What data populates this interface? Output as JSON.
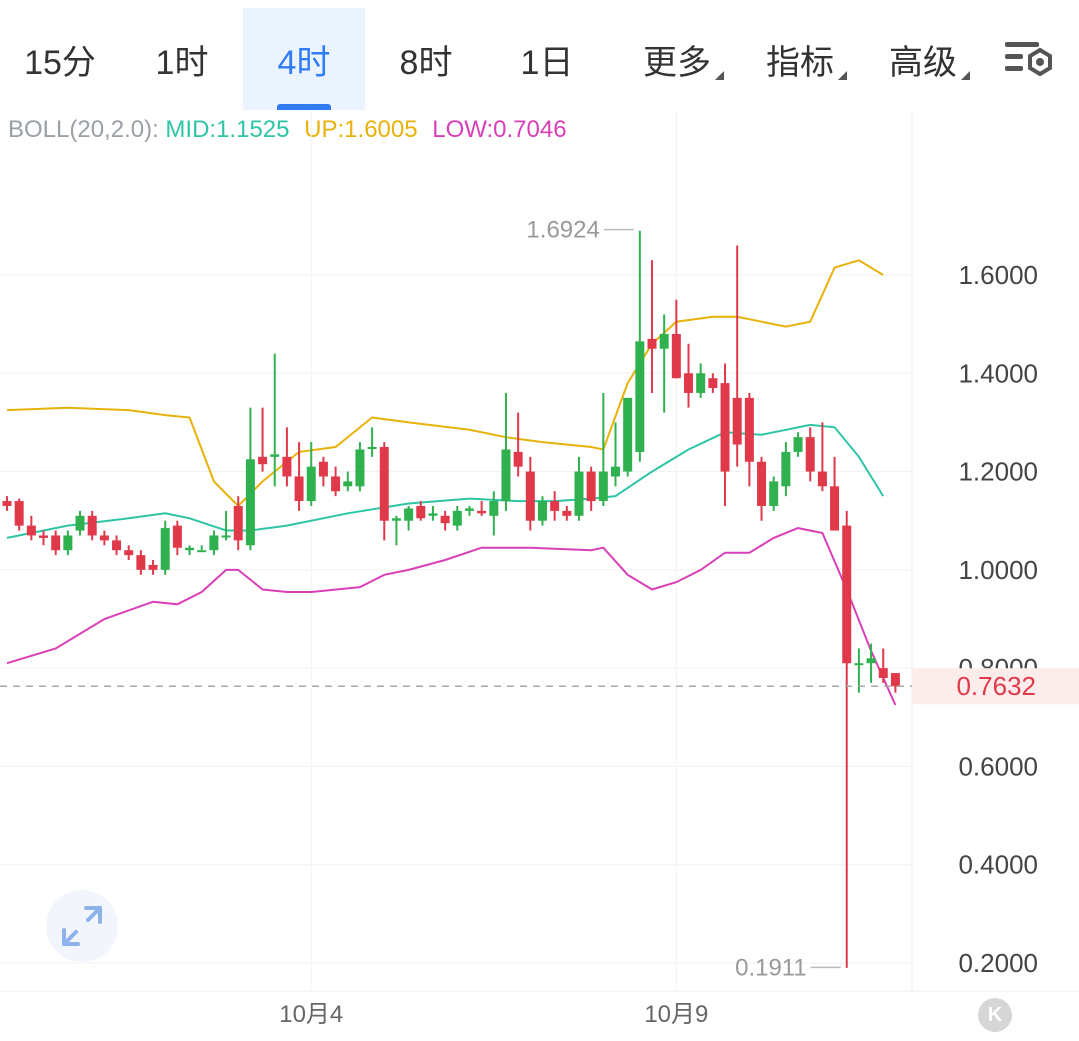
{
  "tabs": [
    {
      "label": "15分",
      "active": false
    },
    {
      "label": "1时",
      "active": false
    },
    {
      "label": "4时",
      "active": true
    },
    {
      "label": "8时",
      "active": false
    },
    {
      "label": "1日",
      "active": false
    },
    {
      "label": "更多",
      "active": false,
      "dropdown": true
    },
    {
      "label": "指标",
      "active": false,
      "dropdown": true
    },
    {
      "label": "高级",
      "active": false,
      "dropdown": true
    }
  ],
  "settings_icon": "chart-settings-icon",
  "indicator": {
    "name": "BOLL(20,2.0):",
    "mid_label": "MID:1.1525",
    "up_label": "UP:1.6005",
    "low_label": "LOW:0.7046"
  },
  "colors": {
    "up": "#2fb14f",
    "down": "#e0394a",
    "mid": "#2ec4a6",
    "upper": "#e8b20a",
    "lower": "#d93fb7",
    "accent": "#2f7cf6"
  },
  "chart_data": {
    "type": "candlestick",
    "y_ticks": [
      "1.6000",
      "1.4000",
      "1.2000",
      "1.0000",
      "0.8000",
      "0.6000",
      "0.4000",
      "0.2000"
    ],
    "y_tick_values": [
      1.6,
      1.4,
      1.2,
      1.0,
      0.8,
      0.6,
      0.4,
      0.2
    ],
    "ylim": [
      0.18,
      1.9
    ],
    "x_labels": [
      {
        "index": 25,
        "text": "10月4"
      },
      {
        "index": 55,
        "text": "10月9"
      }
    ],
    "high_marker": {
      "text": "1.6924",
      "value": 1.6924,
      "index": 52
    },
    "low_marker": {
      "text": "0.1911",
      "value": 0.1911,
      "index": 69
    },
    "last_price": {
      "text": "0.7632",
      "value": 0.7632
    },
    "candles": [
      [
        1.14,
        1.13,
        1.15,
        1.12
      ],
      [
        1.14,
        1.09,
        1.145,
        1.08
      ],
      [
        1.09,
        1.07,
        1.11,
        1.06
      ],
      [
        1.07,
        1.065,
        1.08,
        1.05
      ],
      [
        1.07,
        1.04,
        1.08,
        1.03
      ],
      [
        1.04,
        1.07,
        1.08,
        1.03
      ],
      [
        1.08,
        1.11,
        1.12,
        1.07
      ],
      [
        1.11,
        1.07,
        1.12,
        1.06
      ],
      [
        1.07,
        1.06,
        1.08,
        1.05
      ],
      [
        1.06,
        1.04,
        1.07,
        1.03
      ],
      [
        1.04,
        1.03,
        1.05,
        1.02
      ],
      [
        1.03,
        1.0,
        1.04,
        0.99
      ],
      [
        1.01,
        1.0,
        1.02,
        0.99
      ],
      [
        1.0,
        1.085,
        1.1,
        0.99
      ],
      [
        1.09,
        1.045,
        1.1,
        1.03
      ],
      [
        1.04,
        1.045,
        1.05,
        1.03
      ],
      [
        1.04,
        1.04,
        1.05,
        1.04
      ],
      [
        1.04,
        1.07,
        1.08,
        1.03
      ],
      [
        1.07,
        1.07,
        1.12,
        1.06
      ],
      [
        1.13,
        1.06,
        1.15,
        1.04
      ],
      [
        1.05,
        1.225,
        1.33,
        1.04
      ],
      [
        1.23,
        1.215,
        1.33,
        1.2
      ],
      [
        1.23,
        1.235,
        1.44,
        1.17
      ],
      [
        1.23,
        1.19,
        1.29,
        1.17
      ],
      [
        1.19,
        1.14,
        1.26,
        1.12
      ],
      [
        1.14,
        1.21,
        1.26,
        1.13
      ],
      [
        1.22,
        1.19,
        1.23,
        1.17
      ],
      [
        1.19,
        1.16,
        1.21,
        1.15
      ],
      [
        1.17,
        1.18,
        1.2,
        1.16
      ],
      [
        1.17,
        1.245,
        1.26,
        1.16
      ],
      [
        1.25,
        1.25,
        1.29,
        1.23
      ],
      [
        1.25,
        1.1,
        1.26,
        1.06
      ],
      [
        1.1,
        1.105,
        1.11,
        1.05
      ],
      [
        1.1,
        1.125,
        1.13,
        1.08
      ],
      [
        1.13,
        1.105,
        1.14,
        1.1
      ],
      [
        1.11,
        1.115,
        1.13,
        1.1
      ],
      [
        1.11,
        1.095,
        1.12,
        1.08
      ],
      [
        1.09,
        1.12,
        1.13,
        1.08
      ],
      [
        1.12,
        1.125,
        1.13,
        1.11
      ],
      [
        1.12,
        1.115,
        1.14,
        1.11
      ],
      [
        1.11,
        1.14,
        1.16,
        1.07
      ],
      [
        1.14,
        1.245,
        1.36,
        1.12
      ],
      [
        1.24,
        1.21,
        1.32,
        1.19
      ],
      [
        1.2,
        1.1,
        1.23,
        1.08
      ],
      [
        1.1,
        1.14,
        1.15,
        1.09
      ],
      [
        1.14,
        1.12,
        1.16,
        1.1
      ],
      [
        1.12,
        1.11,
        1.13,
        1.1
      ],
      [
        1.11,
        1.2,
        1.23,
        1.1
      ],
      [
        1.2,
        1.14,
        1.21,
        1.12
      ],
      [
        1.14,
        1.2,
        1.36,
        1.13
      ],
      [
        1.19,
        1.21,
        1.3,
        1.17
      ],
      [
        1.2,
        1.35,
        1.34,
        1.19
      ],
      [
        1.24,
        1.465,
        1.69,
        1.22
      ],
      [
        1.47,
        1.45,
        1.63,
        1.36
      ],
      [
        1.45,
        1.48,
        1.52,
        1.32
      ],
      [
        1.48,
        1.39,
        1.55,
        1.39
      ],
      [
        1.4,
        1.36,
        1.46,
        1.33
      ],
      [
        1.36,
        1.4,
        1.42,
        1.35
      ],
      [
        1.39,
        1.37,
        1.4,
        1.36
      ],
      [
        1.38,
        1.2,
        1.42,
        1.13
      ],
      [
        1.35,
        1.255,
        1.66,
        1.21
      ],
      [
        1.35,
        1.22,
        1.36,
        1.17
      ],
      [
        1.22,
        1.13,
        1.23,
        1.1
      ],
      [
        1.13,
        1.18,
        1.19,
        1.12
      ],
      [
        1.17,
        1.24,
        1.26,
        1.15
      ],
      [
        1.24,
        1.27,
        1.28,
        1.23
      ],
      [
        1.27,
        1.2,
        1.29,
        1.18
      ],
      [
        1.2,
        1.17,
        1.3,
        1.16
      ],
      [
        1.17,
        1.08,
        1.23,
        1.08
      ],
      [
        1.09,
        0.81,
        1.12,
        0.19
      ],
      [
        0.81,
        0.81,
        0.84,
        0.75
      ],
      [
        0.81,
        0.82,
        0.85,
        0.77
      ],
      [
        0.8,
        0.78,
        0.84,
        0.77
      ],
      [
        0.79,
        0.7632,
        0.79,
        0.75
      ]
    ],
    "boll": {
      "mid": [
        [
          0,
          1.065
        ],
        [
          5,
          1.09
        ],
        [
          10,
          1.105
        ],
        [
          13,
          1.115
        ],
        [
          15,
          1.105
        ],
        [
          18,
          1.08
        ],
        [
          20,
          1.08
        ],
        [
          23,
          1.09
        ],
        [
          28,
          1.115
        ],
        [
          33,
          1.135
        ],
        [
          38,
          1.145
        ],
        [
          42,
          1.14
        ],
        [
          45,
          1.14
        ],
        [
          48,
          1.145
        ],
        [
          50,
          1.15
        ],
        [
          53,
          1.2
        ],
        [
          56,
          1.245
        ],
        [
          59,
          1.28
        ],
        [
          62,
          1.275
        ],
        [
          64,
          1.285
        ],
        [
          66,
          1.295
        ],
        [
          68,
          1.29
        ],
        [
          70,
          1.23
        ],
        [
          72,
          1.15
        ]
      ],
      "upper": [
        [
          0,
          1.325
        ],
        [
          5,
          1.33
        ],
        [
          10,
          1.325
        ],
        [
          13,
          1.315
        ],
        [
          15,
          1.31
        ],
        [
          17,
          1.18
        ],
        [
          19,
          1.13
        ],
        [
          21,
          1.18
        ],
        [
          24,
          1.24
        ],
        [
          27,
          1.25
        ],
        [
          30,
          1.31
        ],
        [
          33,
          1.3
        ],
        [
          38,
          1.285
        ],
        [
          41,
          1.27
        ],
        [
          44,
          1.26
        ],
        [
          48,
          1.25
        ],
        [
          49,
          1.245
        ],
        [
          51,
          1.38
        ],
        [
          53,
          1.46
        ],
        [
          55,
          1.505
        ],
        [
          58,
          1.515
        ],
        [
          60,
          1.515
        ],
        [
          62,
          1.505
        ],
        [
          64,
          1.495
        ],
        [
          66,
          1.505
        ],
        [
          68,
          1.615
        ],
        [
          70,
          1.63
        ],
        [
          72,
          1.6
        ]
      ],
      "lower": [
        [
          0,
          0.81
        ],
        [
          4,
          0.84
        ],
        [
          8,
          0.9
        ],
        [
          12,
          0.935
        ],
        [
          14,
          0.93
        ],
        [
          16,
          0.955
        ],
        [
          18,
          1.0
        ],
        [
          19,
          1.0
        ],
        [
          21,
          0.96
        ],
        [
          23,
          0.955
        ],
        [
          25,
          0.955
        ],
        [
          29,
          0.965
        ],
        [
          31,
          0.99
        ],
        [
          33,
          1.0
        ],
        [
          36,
          1.02
        ],
        [
          39,
          1.045
        ],
        [
          43,
          1.045
        ],
        [
          48,
          1.04
        ],
        [
          49,
          1.045
        ],
        [
          51,
          0.99
        ],
        [
          53,
          0.96
        ],
        [
          55,
          0.975
        ],
        [
          57,
          1.0
        ],
        [
          59,
          1.035
        ],
        [
          61,
          1.035
        ],
        [
          63,
          1.065
        ],
        [
          65,
          1.085
        ],
        [
          67,
          1.075
        ],
        [
          69,
          0.96
        ],
        [
          71,
          0.835
        ],
        [
          73,
          0.725
        ]
      ]
    }
  }
}
